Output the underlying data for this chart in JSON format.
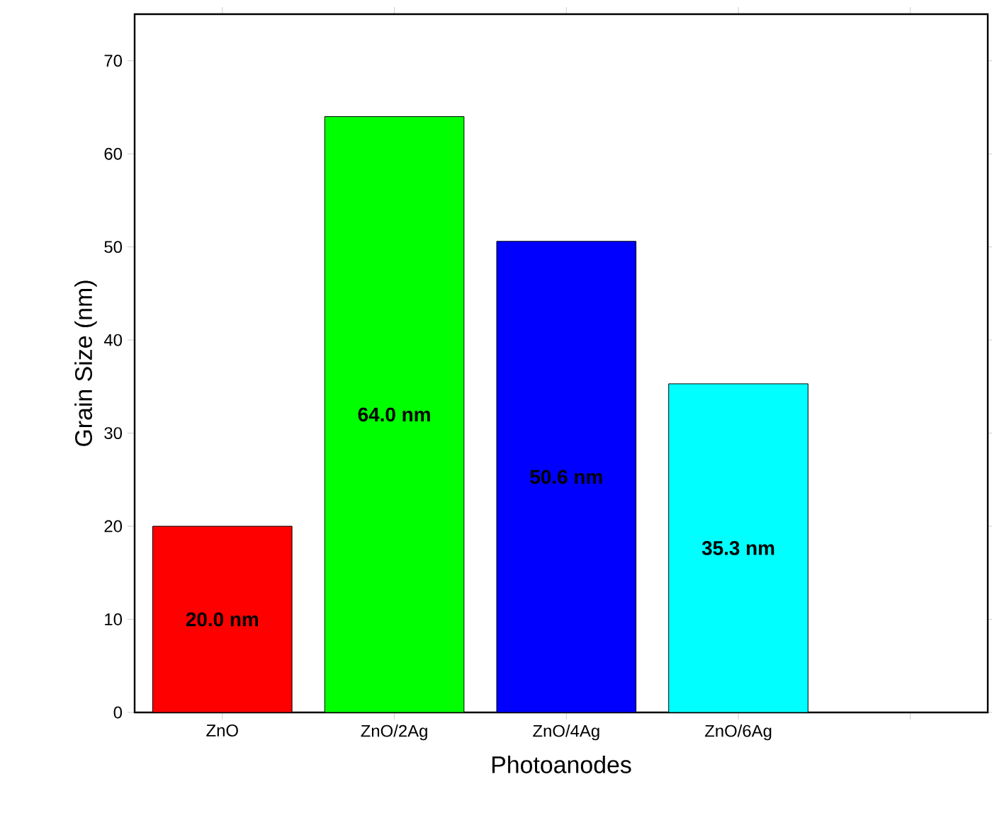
{
  "chart_data": {
    "type": "bar",
    "xlabel": "Photoanodes",
    "ylabel": "Grain Size (nm)",
    "categories": [
      "ZnO",
      "ZnO/2Ag",
      "ZnO/4Ag",
      "ZnO/6Ag",
      null
    ],
    "values": [
      20.0,
      64.0,
      50.6,
      35.3,
      null
    ],
    "colors": [
      "#ff0000",
      "#00ff00",
      "#0000ff",
      "#00ffff",
      null
    ],
    "value_labels": [
      "20.0 nm",
      "64.0 nm",
      "50.6 nm",
      "35.3 nm",
      null
    ],
    "ylim": [
      0,
      75
    ],
    "yticks": [
      0,
      10,
      20,
      30,
      40,
      50,
      60,
      70
    ],
    "grid": false
  }
}
